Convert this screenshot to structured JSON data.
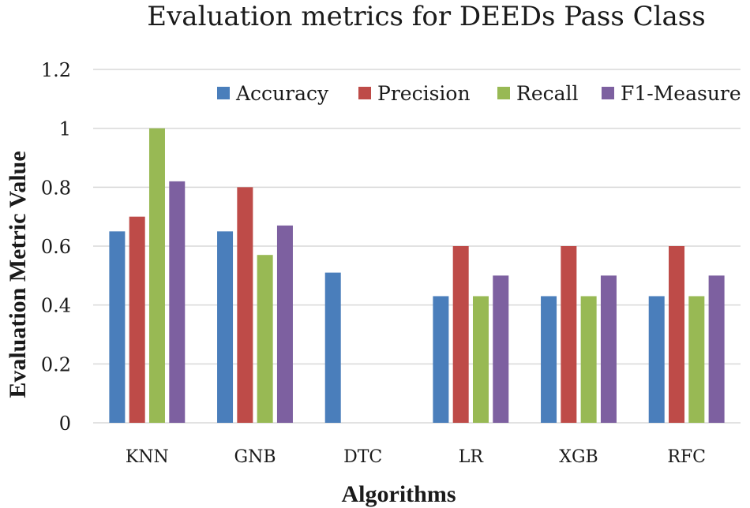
{
  "chart_data": {
    "type": "bar",
    "title": "Evaluation metrics for DEEDs Pass Class",
    "xlabel": "Algorithms",
    "ylabel": "Evaluation Metric Value",
    "ylim": [
      0,
      1.2
    ],
    "yticks": [
      "0",
      "0.2",
      "0.4",
      "0.6",
      "0.8",
      "1",
      "1.2"
    ],
    "ytick_values": [
      0,
      0.2,
      0.4,
      0.6,
      0.8,
      1.0,
      1.2
    ],
    "grid": true,
    "legend_position": "top-right",
    "categories": [
      "KNN",
      "GNB",
      "DTC",
      "LR",
      "XGB",
      "RFC"
    ],
    "series": [
      {
        "name": "Accuracy",
        "color": "#4a7ebb",
        "values": [
          0.65,
          0.65,
          0.51,
          0.43,
          0.43,
          0.43
        ]
      },
      {
        "name": "Precision",
        "color": "#be4b48",
        "values": [
          0.7,
          0.8,
          0,
          0.6,
          0.6,
          0.6
        ]
      },
      {
        "name": "Recall",
        "color": "#98b954",
        "values": [
          1.0,
          0.57,
          0,
          0.43,
          0.43,
          0.43
        ]
      },
      {
        "name": "F1-Measure",
        "color": "#7d60a0",
        "values": [
          0.82,
          0.67,
          0,
          0.5,
          0.5,
          0.5
        ]
      }
    ]
  }
}
